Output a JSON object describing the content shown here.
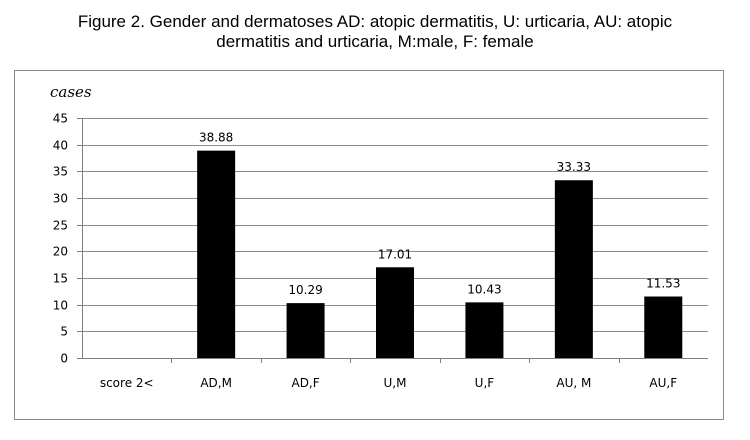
{
  "figure": {
    "title_line1": "Figure 2. Gender and dermatoses AD: atopic dermatitis, U: urticaria, AU: atopic",
    "title_line2": "dermatitis and urticaria, M:male, F: female"
  },
  "chart_data": {
    "type": "bar",
    "title": "Figure 2. Gender and dermatoses AD: atopic dermatitis, U: urticaria, AU: atopic dermatitis and urticaria, M:male, F: female",
    "categories": [
      "score 2<",
      "AD,M",
      "AD,F",
      "U,M",
      "U,F",
      "AU, M",
      "AU,F"
    ],
    "values": [
      null,
      38.88,
      10.29,
      17.01,
      10.43,
      33.33,
      11.53
    ],
    "value_labels": [
      "",
      "38.88",
      "10.29",
      "17.01",
      "10.43",
      "33.33",
      "11.53"
    ],
    "ylabel": "cases",
    "xlabel": "",
    "ylim": [
      0,
      45
    ],
    "yticks": [
      0,
      5,
      10,
      15,
      20,
      25,
      30,
      35,
      40,
      45
    ],
    "grid": true,
    "legend": "none",
    "bar_color": "#000000",
    "grid_color": "#8c8c8c"
  }
}
